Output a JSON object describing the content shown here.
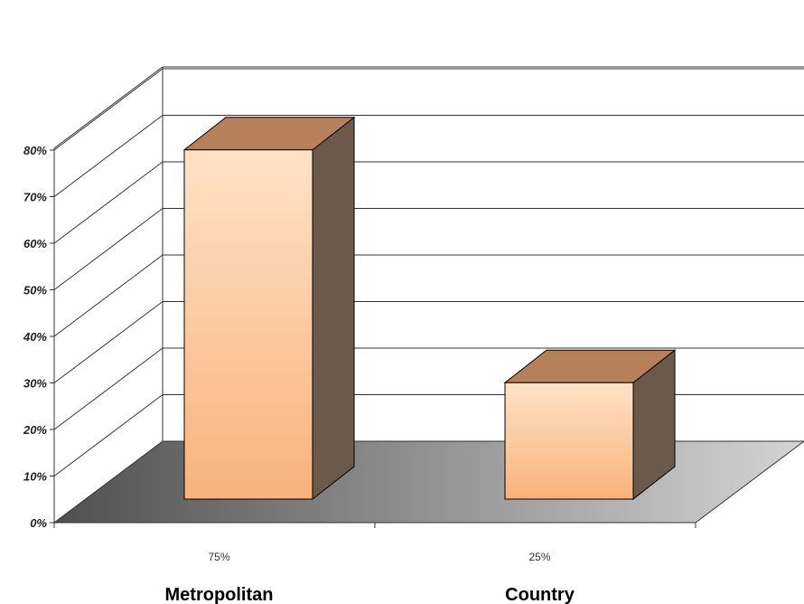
{
  "chart_data": {
    "type": "bar",
    "style": "3d",
    "categories": [
      "Metropolitan",
      "Country"
    ],
    "values": [
      75,
      25
    ],
    "value_labels": [
      "75%",
      "25%"
    ],
    "y_ticks": [
      "0%",
      "10%",
      "20%",
      "30%",
      "40%",
      "50%",
      "60%",
      "70%",
      "80%"
    ],
    "ylim": [
      0,
      80
    ],
    "y_unit": "%",
    "title": "",
    "xlabel": "",
    "ylabel": "",
    "grid": true,
    "legend": "none",
    "colors": {
      "bar_front_top": "#ffe2c6",
      "bar_front_bottom": "#f8b27c",
      "bar_top": "#b6805a",
      "bar_side": "#6b5a4c",
      "floor_dark": "#505050",
      "floor_light": "#d4d4d4"
    }
  }
}
